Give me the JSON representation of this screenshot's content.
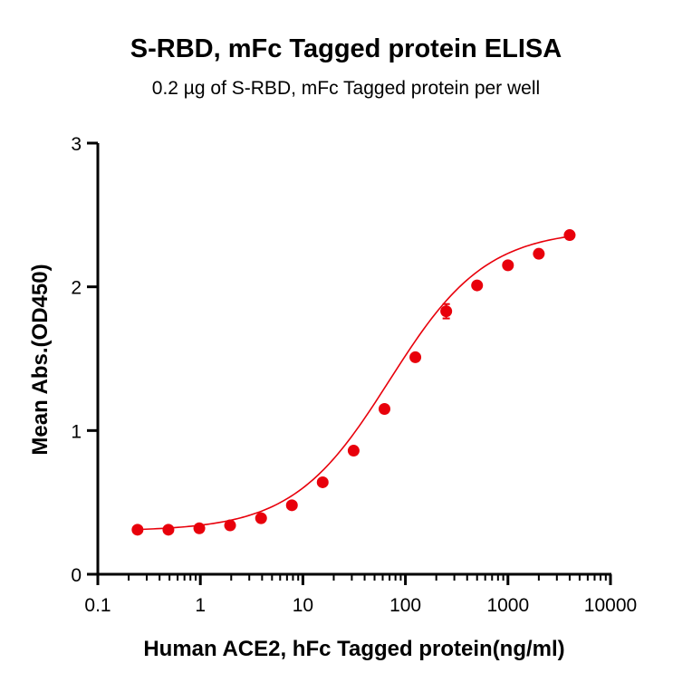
{
  "chart_data": {
    "type": "scatter",
    "title": "S-RBD, mFc Tagged protein ELISA",
    "subtitle": "0.2 µg of S-RBD, mFc Tagged protein per well",
    "xlabel": "Human ACE2, hFc Tagged protein(ng/ml)",
    "ylabel": "Mean Abs.(OD450)",
    "x_scale": "log",
    "xlim": [
      0.1,
      10000
    ],
    "ylim": [
      0,
      3
    ],
    "x_ticks": [
      0.1,
      1,
      10,
      100,
      1000,
      10000
    ],
    "x_tick_labels": [
      "0.1",
      "1",
      "10",
      "100",
      "1000",
      "10000"
    ],
    "y_ticks": [
      0,
      1,
      2,
      3
    ],
    "y_tick_labels": [
      "0",
      "1",
      "2",
      "3"
    ],
    "grid": false,
    "color": "#e8000b",
    "series": [
      {
        "x": [
          0.244,
          0.488,
          0.977,
          1.95,
          3.91,
          7.81,
          15.6,
          31.25,
          62.5,
          125,
          250,
          500,
          1000,
          2000,
          4000
        ],
        "y": [
          0.31,
          0.31,
          0.32,
          0.34,
          0.39,
          0.48,
          0.64,
          0.86,
          1.15,
          1.51,
          1.83,
          2.01,
          2.15,
          2.23,
          2.36
        ],
        "error": [
          0.01,
          0.01,
          0.01,
          0.01,
          0.01,
          0.01,
          0.01,
          0.01,
          0.01,
          0.01,
          0.05,
          0.01,
          0.01,
          0.01,
          0.01
        ]
      }
    ],
    "fit": {
      "model": "4PL",
      "bottom": 0.3,
      "top": 2.4,
      "ec50": 70,
      "hill": 0.92
    }
  }
}
